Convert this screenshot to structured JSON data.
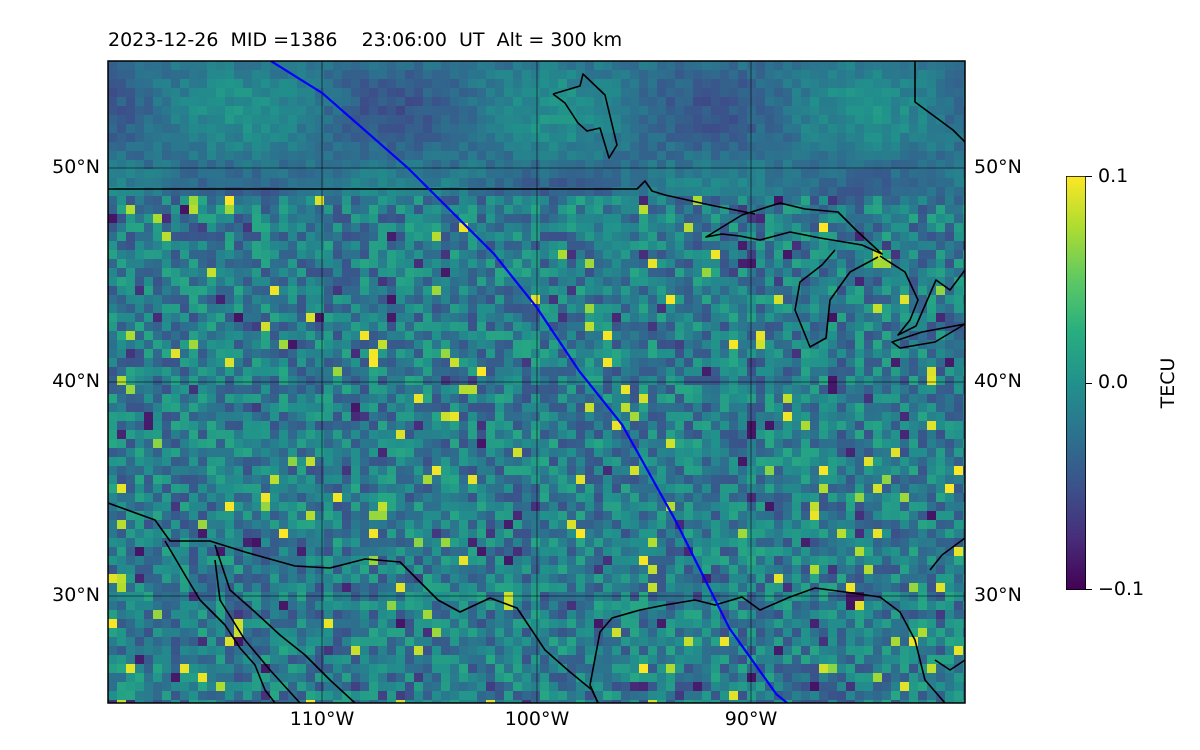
{
  "header": {
    "date": "2023-12-26",
    "mid": "MID =1386",
    "time": "23:06:00",
    "time_unit": "UT",
    "altitude": "Alt = 300 km",
    "title_full": "2023-12-26  MID =1386    23:06:00  UT  Alt = 300 km"
  },
  "map": {
    "lon_range": [
      -120,
      -80
    ],
    "lat_range": [
      25,
      55
    ],
    "projection": "PlateCarree",
    "gridlines": true,
    "lat_labels": [
      "50°N",
      "40°N",
      "30°N"
    ],
    "lon_labels": [
      "110°W",
      "100°W",
      "90°W"
    ],
    "data_colormap": "viridis",
    "coastline_color": "#000000",
    "track_color": "#0000ff"
  },
  "colorbar": {
    "title": "TECU",
    "min_label": "−0.1",
    "mid_label": "0.0",
    "max_label": "0.1",
    "vmin": -0.1,
    "vmax": 0.1
  },
  "chart_data": {
    "type": "heatmap",
    "title": "2023-12-26  MID =1386    23:06:00  UT  Alt = 300 km",
    "xlabel": "",
    "ylabel": "",
    "xlim": [
      -120,
      -80
    ],
    "ylim": [
      25,
      55
    ],
    "x_ticks": [
      "110°W",
      "100°W",
      "90°W"
    ],
    "y_ticks": [
      "50°N",
      "40°N",
      "30°N"
    ],
    "colorbar_label": "TECU",
    "value_range": [
      -0.1,
      0.1
    ],
    "grid": true,
    "track": {
      "color": "#0000ff",
      "points": [
        [
          -112.4,
          55
        ],
        [
          -110,
          53.5
        ],
        [
          -106,
          50
        ],
        [
          -102,
          46
        ],
        [
          -100,
          43.5
        ],
        [
          -98,
          40.5
        ],
        [
          -96,
          38
        ],
        [
          -93.5,
          33.5
        ],
        [
          -91,
          28.5
        ],
        [
          -88.8,
          25.4
        ],
        [
          -88.3,
          25
        ]
      ]
    }
  }
}
